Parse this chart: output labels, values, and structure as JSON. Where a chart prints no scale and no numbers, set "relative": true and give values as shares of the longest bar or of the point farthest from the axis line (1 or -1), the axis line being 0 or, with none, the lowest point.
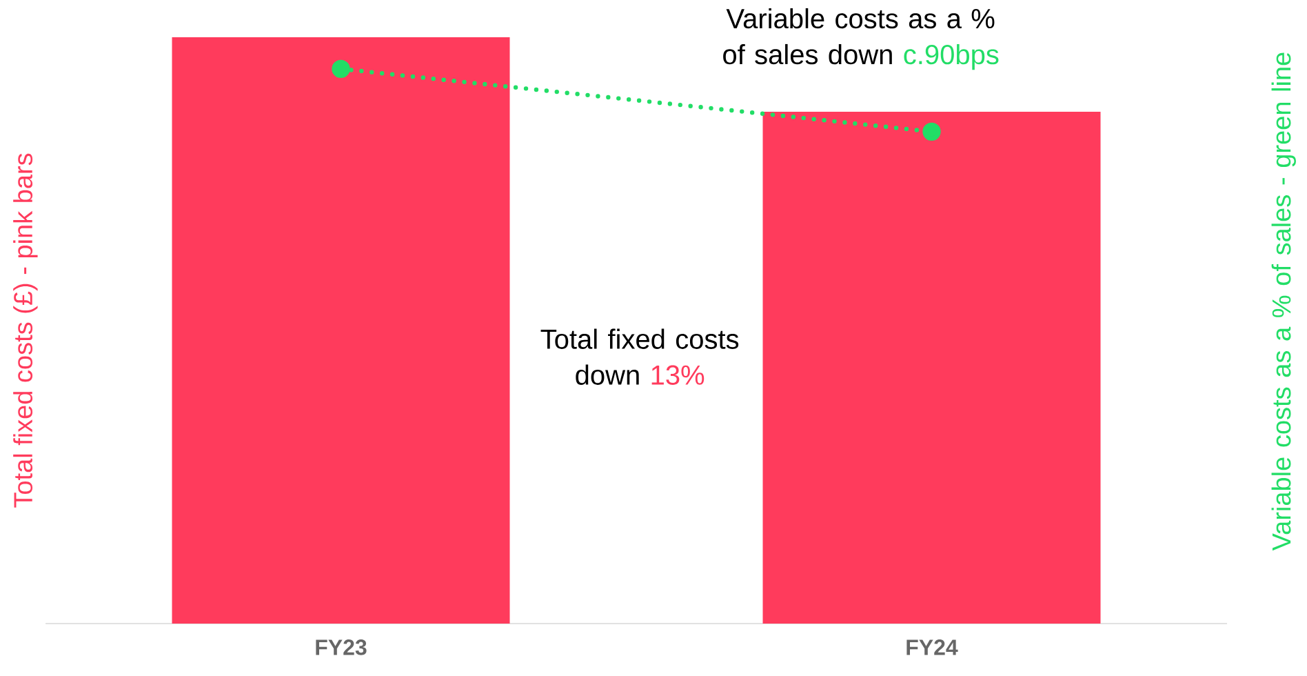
{
  "chart_data": {
    "type": "bar",
    "relative": true,
    "categories": [
      "FY23",
      "FY24"
    ],
    "ylabel": "Total fixed costs (£) - pink bars",
    "y2label": "Variable costs as a % of sales - green line",
    "series": [
      {
        "color": "#ff3b5c",
        "values": [
          1,
          0.873
        ]
      },
      {
        "type": "line",
        "axis": "y2",
        "color": "#22dd66",
        "values": [
          0.946,
          0.839
        ],
        "marker": "circle",
        "line_style": "dotted"
      }
    ],
    "annotations": [
      "Variable costs as a % of sales down",
      "c.90bps",
      "Total fixed costs down",
      "13%"
    ],
    "grid": false
  }
}
